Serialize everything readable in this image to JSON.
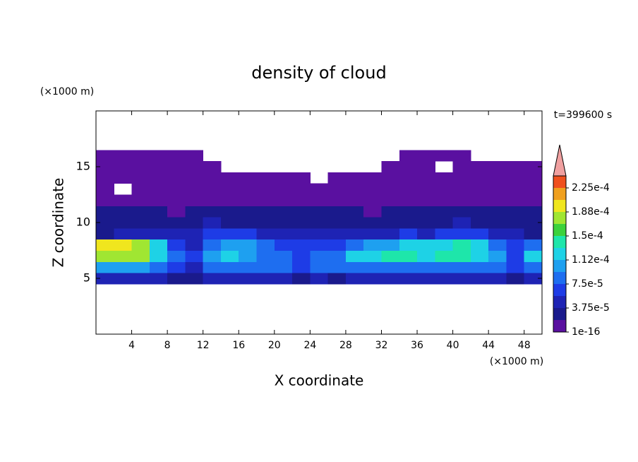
{
  "chart_data": {
    "type": "contour",
    "title": "density of cloud",
    "xlabel": "X coordinate",
    "ylabel": "Z coordinate",
    "xunit": "(×1000 m)",
    "yunit": "(×1000 m)",
    "annotation": "t=399600 s",
    "xlim": [
      0,
      50
    ],
    "ylim": [
      0,
      20
    ],
    "xticks": [
      4,
      8,
      12,
      16,
      20,
      24,
      28,
      32,
      36,
      40,
      44,
      48
    ],
    "yticks": [
      5,
      10,
      15
    ],
    "x": [
      1,
      3,
      5,
      7,
      9,
      11,
      13,
      15,
      17,
      19,
      21,
      23,
      25,
      27,
      29,
      31,
      33,
      35,
      37,
      39,
      41,
      43,
      45,
      47,
      49
    ],
    "y": [
      5,
      6,
      7,
      8,
      9,
      10,
      11,
      12,
      13,
      14,
      15,
      16
    ],
    "z": [
      [
        4e-05,
        4e-05,
        4e-05,
        4e-05,
        3e-05,
        2e-05,
        4e-05,
        4e-05,
        4e-05,
        4e-05,
        4e-05,
        3e-05,
        4e-05,
        3e-05,
        4e-05,
        4e-05,
        4e-05,
        4e-05,
        4e-05,
        4e-05,
        4e-05,
        4e-05,
        4e-05,
        3e-05,
        4e-05
      ],
      [
        0.00011,
        0.00011,
        0.0001,
        9e-05,
        7e-05,
        5e-05,
        9e-05,
        9e-05,
        9e-05,
        9e-05,
        8e-05,
        6e-05,
        9e-05,
        8e-05,
        9e-05,
        9e-05,
        9e-05,
        9e-05,
        9e-05,
        9e-05,
        9e-05,
        9e-05,
        8e-05,
        6e-05,
        9e-05
      ],
      [
        0.00017,
        0.00018,
        0.00017,
        0.00013,
        8e-05,
        6e-05,
        0.00011,
        0.00012,
        0.00011,
        9e-05,
        8e-05,
        7e-05,
        8e-05,
        8e-05,
        0.00012,
        0.00013,
        0.00014,
        0.00014,
        0.00013,
        0.00014,
        0.00014,
        0.00013,
        0.00011,
        7e-05,
        0.00012
      ],
      [
        0.00019,
        0.0002,
        0.00018,
        0.00012,
        6e-05,
        5e-05,
        9e-05,
        0.00011,
        0.0001,
        8e-05,
        6e-05,
        6e-05,
        7e-05,
        6e-05,
        8e-05,
        0.0001,
        0.00011,
        0.00012,
        0.00012,
        0.00013,
        0.00014,
        0.00012,
        9e-05,
        6e-05,
        8e-05
      ],
      [
        3e-05,
        4e-05,
        5e-05,
        5e-05,
        4e-05,
        4e-05,
        6e-05,
        7e-05,
        6e-05,
        5e-05,
        5e-05,
        4e-05,
        5e-05,
        5e-05,
        4e-05,
        5e-05,
        5e-05,
        6e-05,
        5e-05,
        6e-05,
        7e-05,
        6e-05,
        5e-05,
        4e-05,
        3e-05
      ],
      [
        2e-05,
        2e-05,
        3e-05,
        3e-05,
        3e-05,
        3e-05,
        4e-05,
        3e-05,
        3e-05,
        3e-05,
        3e-05,
        3e-05,
        3e-05,
        3e-05,
        2e-05,
        3e-05,
        3e-05,
        3e-05,
        3e-05,
        3e-05,
        4e-05,
        3e-05,
        3e-05,
        2e-05,
        2e-05
      ],
      [
        2e-05,
        2e-05,
        2e-05,
        2e-05,
        1e-05,
        2e-05,
        2e-05,
        2e-05,
        2e-05,
        2e-05,
        2e-05,
        2e-05,
        2e-05,
        2e-05,
        2e-05,
        1e-05,
        2e-05,
        2e-05,
        2e-05,
        2e-05,
        2e-05,
        2e-05,
        2e-05,
        2e-05,
        2e-05
      ],
      [
        1e-05,
        1e-05,
        1e-05,
        1e-05,
        1e-05,
        1e-05,
        1e-05,
        1e-05,
        1e-05,
        1e-05,
        1e-05,
        1e-05,
        1e-05,
        1e-05,
        1e-05,
        1e-05,
        1e-05,
        1e-05,
        1e-05,
        1e-05,
        1e-05,
        1e-05,
        1e-05,
        1e-05,
        1e-05
      ],
      [
        1e-05,
        0,
        1e-05,
        1e-05,
        1e-05,
        1e-05,
        1e-05,
        1e-05,
        1e-05,
        1e-05,
        1e-05,
        1e-05,
        1e-05,
        1e-05,
        1e-05,
        1e-05,
        1e-05,
        1e-05,
        1e-05,
        1e-05,
        1e-05,
        1e-05,
        1e-05,
        1e-05,
        1e-05
      ],
      [
        1e-05,
        1e-05,
        1e-05,
        1e-05,
        1e-05,
        1e-05,
        1e-05,
        1e-05,
        1e-05,
        1e-05,
        5e-06,
        5e-06,
        0,
        5e-06,
        1e-05,
        1e-05,
        1e-05,
        1e-05,
        1e-05,
        1e-05,
        1e-05,
        1e-05,
        1e-05,
        1e-05,
        1e-05
      ],
      [
        1e-05,
        1e-05,
        1e-05,
        1e-05,
        1e-05,
        1e-05,
        5e-06,
        0,
        0,
        0,
        0,
        0,
        0,
        0,
        0,
        0,
        5e-06,
        5e-06,
        5e-06,
        0,
        5e-06,
        5e-06,
        5e-06,
        5e-06,
        5e-06
      ],
      [
        5e-06,
        5e-06,
        5e-06,
        5e-06,
        5e-06,
        5e-06,
        0,
        0,
        0,
        0,
        0,
        0,
        0,
        0,
        0,
        0,
        0,
        5e-06,
        5e-06,
        5e-06,
        5e-06,
        0,
        0,
        0,
        0
      ]
    ],
    "levels": [
      1e-16,
      1.875e-05,
      3.75e-05,
      5.625e-05,
      7.5e-05,
      9.375e-05,
      0.0001125,
      0.00013125,
      0.00015,
      0.00016875,
      0.0001875,
      0.00020625,
      0.000225
    ],
    "colors": [
      "#5a10a0",
      "#1a1a8c",
      "#1e23b4",
      "#1e3ce6",
      "#1e6ef0",
      "#1ea0f0",
      "#1ed2e6",
      "#1ee6aa",
      "#3cd23c",
      "#a0e632",
      "#f0e61e",
      "#f0a01e",
      "#f0501e"
    ],
    "overflow_color": "#f0a0a0",
    "colorbar_ticks": [
      {
        "value": 1e-16,
        "label": "1e-16"
      },
      {
        "value": 3.75e-05,
        "label": "3.75e-5"
      },
      {
        "value": 7.5e-05,
        "label": "7.5e-5"
      },
      {
        "value": 0.0001125,
        "label": "1.12e-4"
      },
      {
        "value": 0.00015,
        "label": "1.5e-4"
      },
      {
        "value": 0.0001875,
        "label": "1.88e-4"
      },
      {
        "value": 0.000225,
        "label": "2.25e-4"
      }
    ]
  }
}
